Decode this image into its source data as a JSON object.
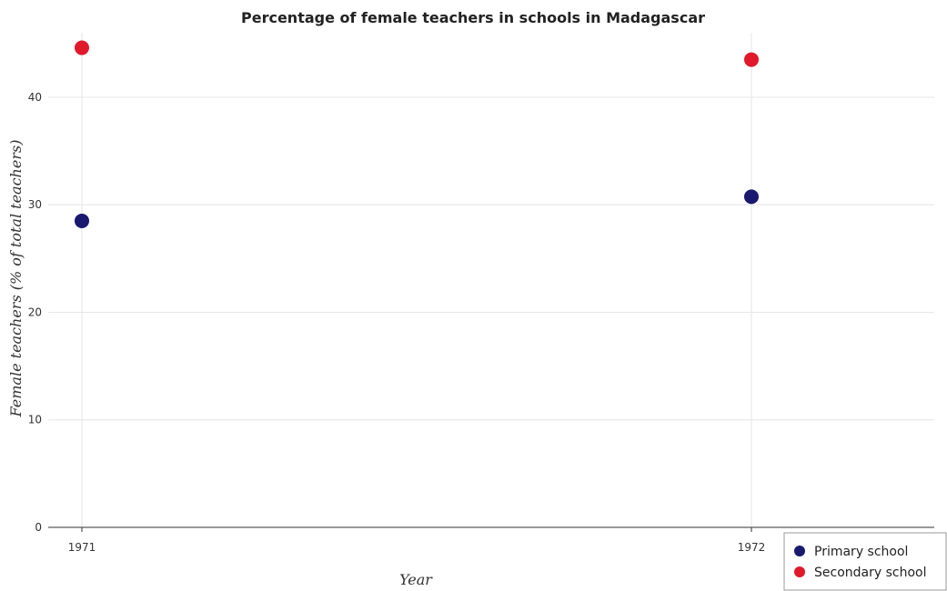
{
  "chart_data": {
    "type": "scatter",
    "title": "Percentage of female teachers in schools in Madagascar",
    "xlabel": "Year",
    "ylabel": "Female teachers (% of total teachers)",
    "categories": [
      "1971",
      "1972"
    ],
    "yticks": [
      0,
      10,
      20,
      30,
      40
    ],
    "ylim": [
      0,
      46
    ],
    "grid": true,
    "legend_position": "bottom-right",
    "series": [
      {
        "name": "Primary school",
        "color": "#191970",
        "values": [
          28.5,
          30.75
        ]
      },
      {
        "name": "Secondary school",
        "color": "#e0192b",
        "values": [
          44.6,
          43.5
        ]
      }
    ]
  }
}
